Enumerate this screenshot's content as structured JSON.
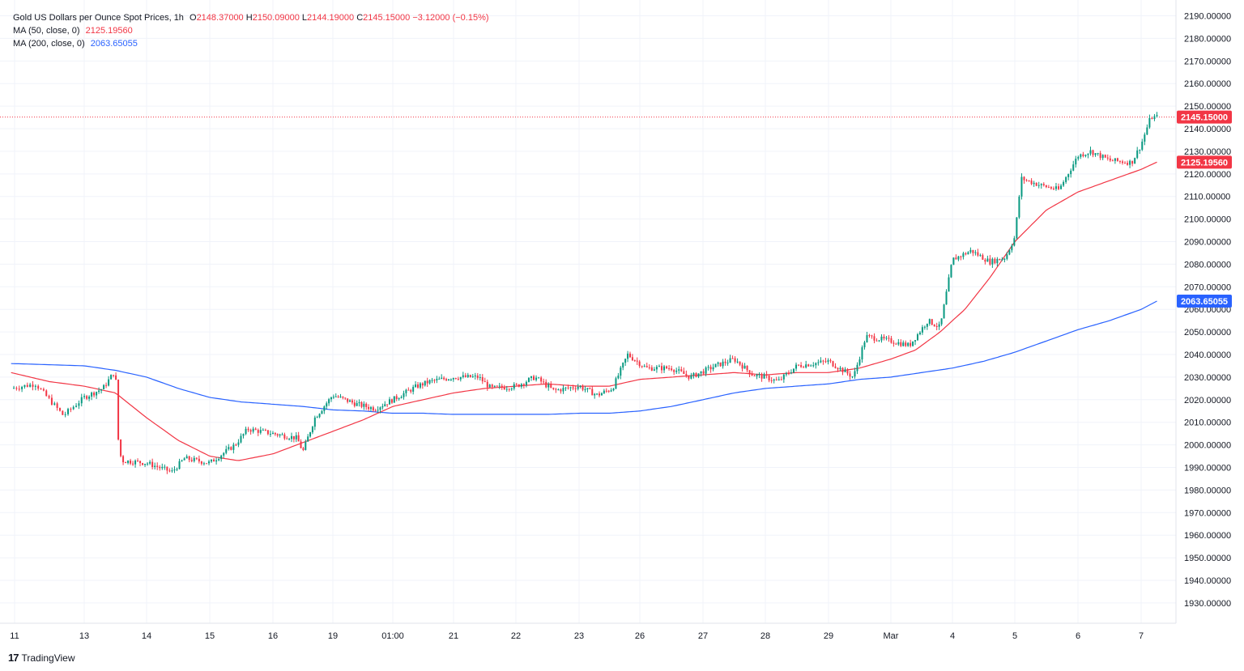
{
  "legend": {
    "title": "Gold US Dollars per Ounce Spot Prices, 1h",
    "ohlc": {
      "o_label": "O",
      "o": "2148.37000",
      "h_label": "H",
      "h": "2150.09000",
      "l_label": "L",
      "l": "2144.19000",
      "c_label": "C",
      "c": "2145.15000",
      "change": "−3.12000 (−0.15%)"
    },
    "ma50_label": "MA (50, close, 0)",
    "ma50_value": "2125.19560",
    "ma200_label": "MA (200, close, 0)",
    "ma200_value": "2063.65055"
  },
  "watermark": {
    "logo": "17",
    "text": "TradingView"
  },
  "colors": {
    "up": "#089981",
    "down": "#f23645",
    "ma50": "#f23645",
    "ma200": "#2962ff",
    "grid": "#f0f3fa",
    "text": "#131722"
  },
  "chart_data": {
    "type": "line",
    "ylim": [
      1921,
      2197
    ],
    "y_ticks": [
      2190,
      2180,
      2170,
      2160,
      2150,
      2140,
      2130,
      2120,
      2110,
      2100,
      2090,
      2080,
      2070,
      2060,
      2050,
      2040,
      2030,
      2020,
      2010,
      2000,
      1990,
      1980,
      1970,
      1960,
      1950,
      1940,
      1930
    ],
    "y_tick_labels": [
      "2190.00000",
      "2180.00000",
      "2170.00000",
      "2160.00000",
      "2150.00000",
      "2140.00000",
      "2130.00000",
      "2120.00000",
      "2110.00000",
      "2100.00000",
      "2090.00000",
      "2080.00000",
      "2070.00000",
      "2060.00000",
      "2050.00000",
      "2040.00000",
      "2030.00000",
      "2020.00000",
      "2010.00000",
      "2000.00000",
      "1990.00000",
      "1980.00000",
      "1970.00000",
      "1960.00000",
      "1950.00000",
      "1940.00000",
      "1930.00000"
    ],
    "x_ticks": [
      "11",
      "13",
      "14",
      "15",
      "16",
      "19",
      "01:00",
      "21",
      "22",
      "23",
      "26",
      "27",
      "28",
      "29",
      "Mar",
      "4",
      "5",
      "6",
      "7"
    ],
    "x_tick_pos": [
      0,
      1,
      2,
      3,
      4,
      5,
      6,
      7,
      8,
      9,
      10,
      11,
      12,
      13,
      14,
      15,
      16,
      17,
      18
    ],
    "last_price": {
      "value": 2145.15,
      "label": "2145.15000"
    },
    "ma50_last": {
      "value": 2125.1956,
      "label": "2125.19560"
    },
    "ma200_last": {
      "value": 2063.65055,
      "label": "2063.65055"
    },
    "price_keypoints": [
      [
        -0.05,
        2025
      ],
      [
        0.3,
        2027
      ],
      [
        0.7,
        2013
      ],
      [
        1.0,
        2021
      ],
      [
        1.3,
        2025
      ],
      [
        1.5,
        2033
      ],
      [
        1.55,
        2000
      ],
      [
        1.6,
        1993
      ],
      [
        2.0,
        1992
      ],
      [
        2.4,
        1988
      ],
      [
        2.6,
        1994
      ],
      [
        3.0,
        1992
      ],
      [
        3.4,
        2000
      ],
      [
        3.6,
        2007
      ],
      [
        4.0,
        2005
      ],
      [
        4.4,
        2003
      ],
      [
        4.5,
        1997
      ],
      [
        4.7,
        2012
      ],
      [
        5.0,
        2022
      ],
      [
        5.4,
        2018
      ],
      [
        5.7,
        2016
      ],
      [
        6.0,
        2020
      ],
      [
        6.4,
        2026
      ],
      [
        6.6,
        2028
      ],
      [
        7.0,
        2030
      ],
      [
        7.4,
        2030
      ],
      [
        7.6,
        2025
      ],
      [
        8.0,
        2026
      ],
      [
        8.3,
        2030
      ],
      [
        8.6,
        2024
      ],
      [
        9.0,
        2026
      ],
      [
        9.3,
        2022
      ],
      [
        9.55,
        2025
      ],
      [
        9.8,
        2040
      ],
      [
        10.1,
        2034
      ],
      [
        10.5,
        2034
      ],
      [
        10.8,
        2030
      ],
      [
        11.2,
        2035
      ],
      [
        11.5,
        2038
      ],
      [
        11.8,
        2031
      ],
      [
        12.0,
        2030
      ],
      [
        12.2,
        2028
      ],
      [
        12.5,
        2035
      ],
      [
        13.0,
        2037
      ],
      [
        13.4,
        2030
      ],
      [
        13.6,
        2048
      ],
      [
        14.0,
        2046
      ],
      [
        14.3,
        2044
      ],
      [
        14.6,
        2055
      ],
      [
        14.8,
        2052
      ],
      [
        15.0,
        2082
      ],
      [
        15.3,
        2086
      ],
      [
        15.6,
        2081
      ],
      [
        15.85,
        2083
      ],
      [
        16.0,
        2092
      ],
      [
        16.1,
        2118
      ],
      [
        16.4,
        2115
      ],
      [
        16.7,
        2113
      ],
      [
        17.0,
        2128
      ],
      [
        17.2,
        2130
      ],
      [
        17.5,
        2126
      ],
      [
        17.85,
        2125
      ],
      [
        18.0,
        2133
      ],
      [
        18.15,
        2145
      ],
      [
        18.25,
        2145.15
      ]
    ],
    "ma50_keypoints": [
      [
        -0.05,
        2032
      ],
      [
        0.5,
        2028
      ],
      [
        1.0,
        2026
      ],
      [
        1.5,
        2023
      ],
      [
        2.0,
        2012
      ],
      [
        2.5,
        2002
      ],
      [
        3.0,
        1995
      ],
      [
        3.45,
        1993
      ],
      [
        4.0,
        1996
      ],
      [
        4.5,
        2001
      ],
      [
        5.0,
        2006
      ],
      [
        5.5,
        2011
      ],
      [
        6.0,
        2017
      ],
      [
        6.5,
        2020
      ],
      [
        7.0,
        2023
      ],
      [
        7.5,
        2025
      ],
      [
        8.0,
        2026
      ],
      [
        8.5,
        2027
      ],
      [
        9.0,
        2026
      ],
      [
        9.5,
        2026
      ],
      [
        10.0,
        2029
      ],
      [
        10.5,
        2030
      ],
      [
        11.0,
        2031
      ],
      [
        11.5,
        2032
      ],
      [
        12.0,
        2031
      ],
      [
        12.5,
        2032
      ],
      [
        13.0,
        2032
      ],
      [
        13.5,
        2034
      ],
      [
        14.0,
        2038
      ],
      [
        14.4,
        2042
      ],
      [
        14.8,
        2050
      ],
      [
        15.2,
        2060
      ],
      [
        15.6,
        2074
      ],
      [
        16.0,
        2090
      ],
      [
        16.5,
        2104
      ],
      [
        17.0,
        2112
      ],
      [
        17.5,
        2117
      ],
      [
        18.0,
        2122
      ],
      [
        18.25,
        2125.2
      ]
    ],
    "ma200_keypoints": [
      [
        -0.05,
        2036
      ],
      [
        0.5,
        2035.5
      ],
      [
        1.0,
        2035
      ],
      [
        1.5,
        2033
      ],
      [
        2.0,
        2030
      ],
      [
        2.5,
        2025
      ],
      [
        3.0,
        2021
      ],
      [
        3.5,
        2019
      ],
      [
        4.0,
        2018
      ],
      [
        4.5,
        2017
      ],
      [
        5.0,
        2015.5
      ],
      [
        5.5,
        2015
      ],
      [
        6.0,
        2014
      ],
      [
        6.5,
        2014
      ],
      [
        7.0,
        2013.5
      ],
      [
        7.5,
        2013.5
      ],
      [
        8.0,
        2013.5
      ],
      [
        8.5,
        2013.5
      ],
      [
        9.0,
        2014
      ],
      [
        9.5,
        2014
      ],
      [
        10.0,
        2015
      ],
      [
        10.5,
        2017
      ],
      [
        11.0,
        2020
      ],
      [
        11.5,
        2023
      ],
      [
        12.0,
        2025
      ],
      [
        12.5,
        2026
      ],
      [
        13.0,
        2027
      ],
      [
        13.5,
        2029
      ],
      [
        14.0,
        2030
      ],
      [
        14.5,
        2032
      ],
      [
        15.0,
        2034
      ],
      [
        15.5,
        2037
      ],
      [
        16.0,
        2041
      ],
      [
        16.5,
        2046
      ],
      [
        17.0,
        2051
      ],
      [
        17.5,
        2055
      ],
      [
        18.0,
        2060
      ],
      [
        18.25,
        2063.65
      ]
    ],
    "grid": true,
    "legend_position": "top-left"
  }
}
